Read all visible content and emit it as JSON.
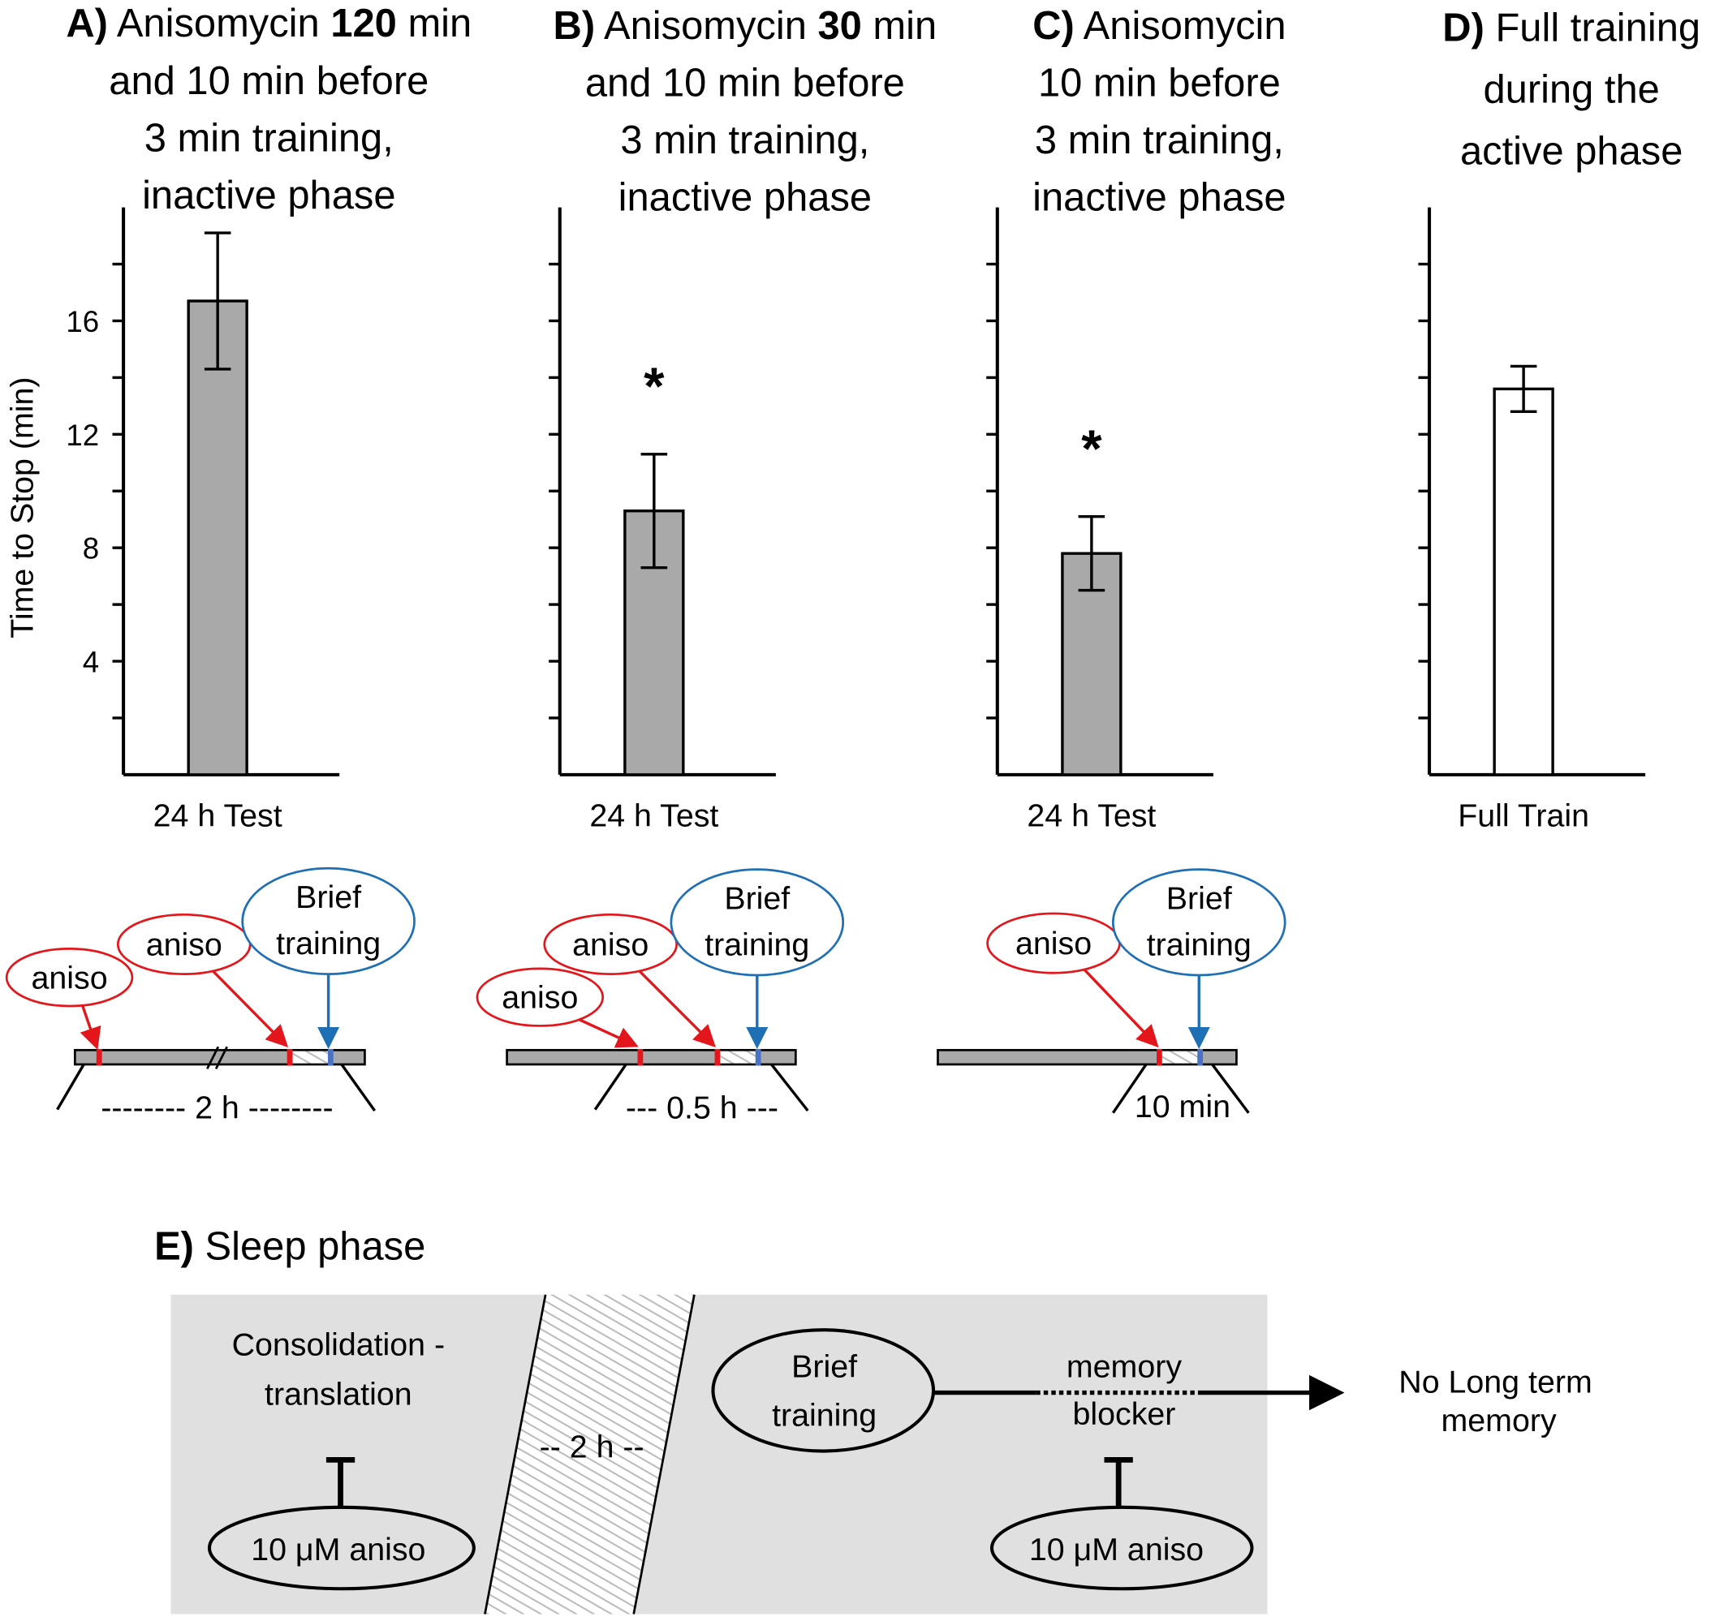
{
  "chart_data": [
    {
      "type": "bar",
      "panel": "A",
      "title_lines": [
        [
          {
            "text": "A)",
            "bold": true
          },
          {
            "text": " Anisomycin ",
            "bold": false
          },
          {
            "text": "120",
            "bold": true
          },
          {
            "text": " min",
            "bold": false
          }
        ],
        [
          {
            "text": "and 10 min before",
            "bold": false
          }
        ],
        [
          {
            "text": "3 min  training,",
            "bold": false
          }
        ],
        [
          {
            "text": "inactive phase",
            "bold": false
          }
        ]
      ],
      "categories": [
        "24 h Test"
      ],
      "values": [
        16.7
      ],
      "errors": [
        2.4
      ],
      "bar_color": "#a9a9a9",
      "ylabel": "Time to Stop (min)",
      "yticks": [
        4,
        8,
        12,
        16
      ],
      "ylim": [
        0,
        20
      ],
      "annotation": ""
    },
    {
      "type": "bar",
      "panel": "B",
      "title_lines": [
        [
          {
            "text": "B)",
            "bold": true
          },
          {
            "text": " Anisomycin ",
            "bold": false
          },
          {
            "text": "30",
            "bold": true
          },
          {
            "text": " min",
            "bold": false
          }
        ],
        [
          {
            "text": "and 10 min before",
            "bold": false
          }
        ],
        [
          {
            "text": "3 min  training,",
            "bold": false
          }
        ],
        [
          {
            "text": "inactive phase",
            "bold": false
          }
        ]
      ],
      "categories": [
        "24 h Test"
      ],
      "values": [
        9.3
      ],
      "errors": [
        2.0
      ],
      "bar_color": "#a9a9a9",
      "ylim": [
        0,
        20
      ],
      "annotation": "*"
    },
    {
      "type": "bar",
      "panel": "C",
      "title_lines": [
        [
          {
            "text": "C)",
            "bold": true
          },
          {
            "text": " Anisomycin",
            "bold": false
          }
        ],
        [
          {
            "text": "10 min before",
            "bold": false
          }
        ],
        [
          {
            "text": "3 min training,",
            "bold": false
          }
        ],
        [
          {
            "text": "inactive phase",
            "bold": false
          }
        ]
      ],
      "categories": [
        "24 h Test"
      ],
      "values": [
        7.8
      ],
      "errors": [
        1.3
      ],
      "bar_color": "#a9a9a9",
      "ylim": [
        0,
        20
      ],
      "annotation": "*"
    },
    {
      "type": "bar",
      "panel": "D",
      "title_lines": [
        [
          {
            "text": "D)",
            "bold": true
          },
          {
            "text": " Full training",
            "bold": false
          }
        ],
        [
          {
            "text": "during the",
            "bold": false
          }
        ],
        [
          {
            "text": "active phase",
            "bold": false
          }
        ]
      ],
      "categories": [
        "Full Train"
      ],
      "values": [
        13.6
      ],
      "errors": [
        0.8
      ],
      "bar_color": "#ffffff",
      "ylim": [
        0,
        20
      ],
      "annotation": ""
    }
  ],
  "timelines": {
    "a": {
      "aniso1": "aniso",
      "aniso2": "aniso",
      "brief1": "Brief",
      "brief2": "training",
      "duration": "-------- 2 h --------"
    },
    "b": {
      "aniso1": "aniso",
      "aniso2": "aniso",
      "brief1": "Brief",
      "brief2": "training",
      "duration": "--- 0.5 h ---"
    },
    "c": {
      "aniso1": "aniso",
      "brief1": "Brief",
      "brief2": "training",
      "duration": "10 min"
    }
  },
  "panel_e": {
    "label": "E)",
    "title": " Sleep phase",
    "consolidation1": "Consolidation -",
    "consolidation2": "translation",
    "aniso_left": "10 μM aniso",
    "gap": "-- 2 h --",
    "brief1": "Brief",
    "brief2": "training",
    "memory1": "memory",
    "memory2": "blocker",
    "aniso_right": "10 μM aniso",
    "outcome1": "No Long term",
    "outcome2": "memory"
  },
  "colors": {
    "red": "#e3161b",
    "blue": "#1f6fb5",
    "bg": "#e0e0e0"
  }
}
